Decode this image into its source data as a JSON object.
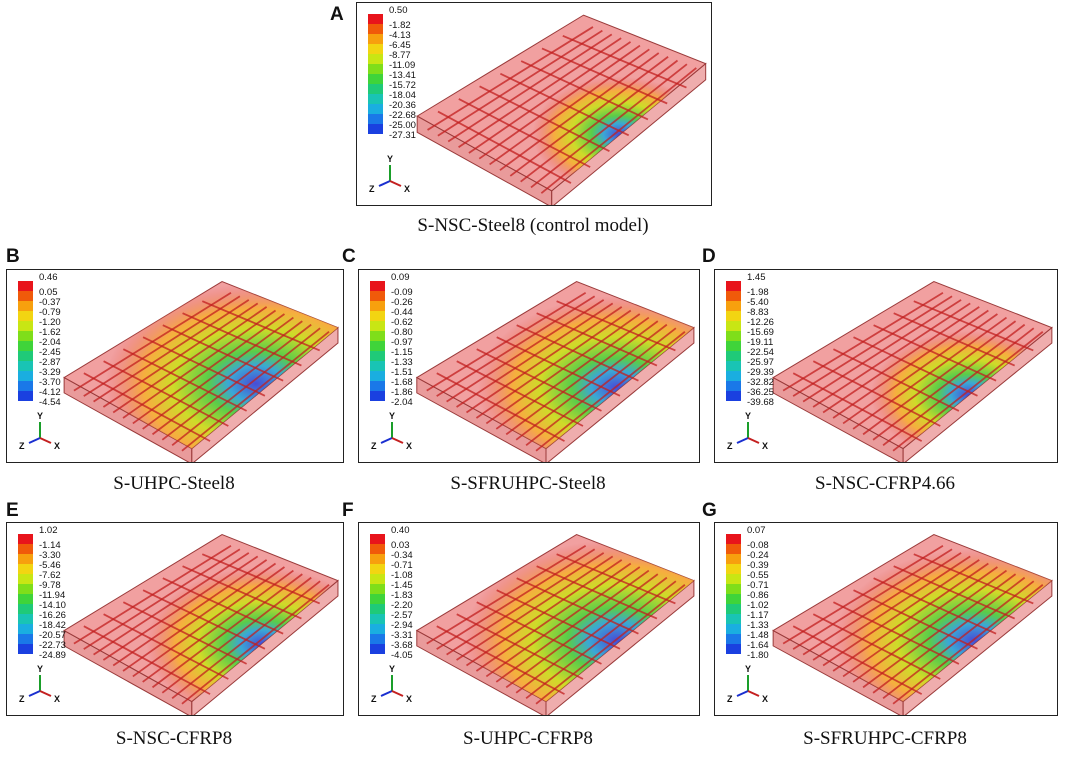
{
  "panels": [
    {
      "letter": "A",
      "caption": "S-NSC-Steel8 (control model)",
      "legend": [
        "0.50",
        "-1.82",
        "-4.13",
        "-6.45",
        "-8.77",
        "-11.09",
        "-13.41",
        "-15.72",
        "-18.04",
        "-20.36",
        "-22.68",
        "-25.00",
        "-27.31"
      ]
    },
    {
      "letter": "B",
      "caption": "S-UHPC-Steel8",
      "legend": [
        "0.46",
        "0.05",
        "-0.37",
        "-0.79",
        "-1.20",
        "-1.62",
        "-2.04",
        "-2.45",
        "-2.87",
        "-3.29",
        "-3.70",
        "-4.12",
        "-4.54"
      ]
    },
    {
      "letter": "C",
      "caption": "S-SFRUHPC-Steel8",
      "legend": [
        "0.09",
        "-0.09",
        "-0.26",
        "-0.44",
        "-0.62",
        "-0.80",
        "-0.97",
        "-1.15",
        "-1.33",
        "-1.51",
        "-1.68",
        "-1.86",
        "-2.04"
      ]
    },
    {
      "letter": "D",
      "caption": "S-NSC-CFRP4.66",
      "legend": [
        "1.45",
        "-1.98",
        "-5.40",
        "-8.83",
        "-12.26",
        "-15.69",
        "-19.11",
        "-22.54",
        "-25.97",
        "-29.39",
        "-32.82",
        "-36.25",
        "-39.68"
      ]
    },
    {
      "letter": "E",
      "caption": "S-NSC-CFRP8",
      "legend": [
        "1.02",
        "-1.14",
        "-3.30",
        "-5.46",
        "-7.62",
        "-9.78",
        "-11.94",
        "-14.10",
        "-16.26",
        "-18.42",
        "-20.57",
        "-22.73",
        "-24.89"
      ]
    },
    {
      "letter": "F",
      "caption": "S-UHPC-CFRP8",
      "legend": [
        "0.40",
        "0.03",
        "-0.34",
        "-0.71",
        "-1.08",
        "-1.45",
        "-1.83",
        "-2.20",
        "-2.57",
        "-2.94",
        "-3.31",
        "-3.68",
        "-4.05"
      ]
    },
    {
      "letter": "G",
      "caption": "S-SFRUHPC-CFRP8",
      "legend": [
        "0.07",
        "-0.08",
        "-0.24",
        "-0.39",
        "-0.55",
        "-0.71",
        "-0.86",
        "-1.02",
        "-1.17",
        "-1.33",
        "-1.48",
        "-1.64",
        "-1.80"
      ]
    }
  ],
  "axes": {
    "y": "Y",
    "z": "Z",
    "x": "X"
  },
  "colormap": [
    "#e8141b",
    "#f05a0a",
    "#f7a00e",
    "#f2d512",
    "#c8e614",
    "#7fde1a",
    "#3fd43a",
    "#1fca78",
    "#19c4b4",
    "#1aaee0",
    "#1a78e8",
    "#1a40e0",
    "#2a18c8"
  ]
}
